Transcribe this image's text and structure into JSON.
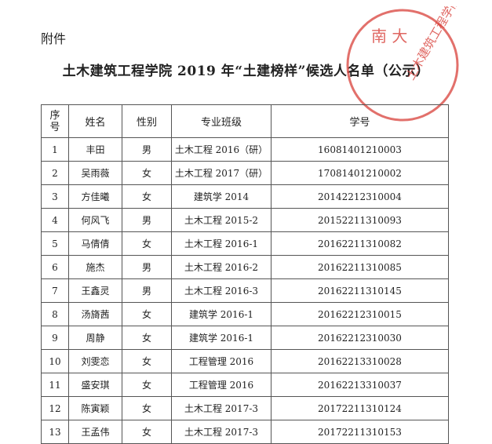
{
  "attachment_label": "附件",
  "title": "土木建筑工程学院 2019 年“土建榜样”候选人名单（公示）",
  "stamp": {
    "text": "南大土木建筑工程学院",
    "color": "#d8403a"
  },
  "table": {
    "headers": [
      "序号",
      "姓名",
      "性别",
      "专业班级",
      "学号"
    ],
    "rows": [
      [
        "1",
        "丰田",
        "男",
        "土木工程 2016（研）",
        "16081401210003"
      ],
      [
        "2",
        "吴雨薇",
        "女",
        "土木工程 2017（研）",
        "17081401210002"
      ],
      [
        "3",
        "方佳曦",
        "女",
        "建筑学 2014",
        "20142212310004"
      ],
      [
        "4",
        "何风飞",
        "男",
        "土木工程 2015-2",
        "20152211310093"
      ],
      [
        "5",
        "马倩倩",
        "女",
        "土木工程 2016-1",
        "20162211310082"
      ],
      [
        "6",
        "施杰",
        "男",
        "土木工程 2016-2",
        "20162211310085"
      ],
      [
        "7",
        "王鑫灵",
        "男",
        "土木工程 2016-3",
        "20162211310145"
      ],
      [
        "8",
        "汤旖茜",
        "女",
        "建筑学 2016-1",
        "20162212310015"
      ],
      [
        "9",
        "周静",
        "女",
        "建筑学 2016-1",
        "20162212310030"
      ],
      [
        "10",
        "刘雯恋",
        "女",
        "工程管理 2016",
        "20162213310028"
      ],
      [
        "11",
        "盛安琪",
        "女",
        "工程管理 2016",
        "20162213310037"
      ],
      [
        "12",
        "陈寅颖",
        "女",
        "土木工程 2017-3",
        "20172211310124"
      ],
      [
        "13",
        "王孟伟",
        "女",
        "土木工程 2017-3",
        "20172211310153"
      ]
    ]
  }
}
